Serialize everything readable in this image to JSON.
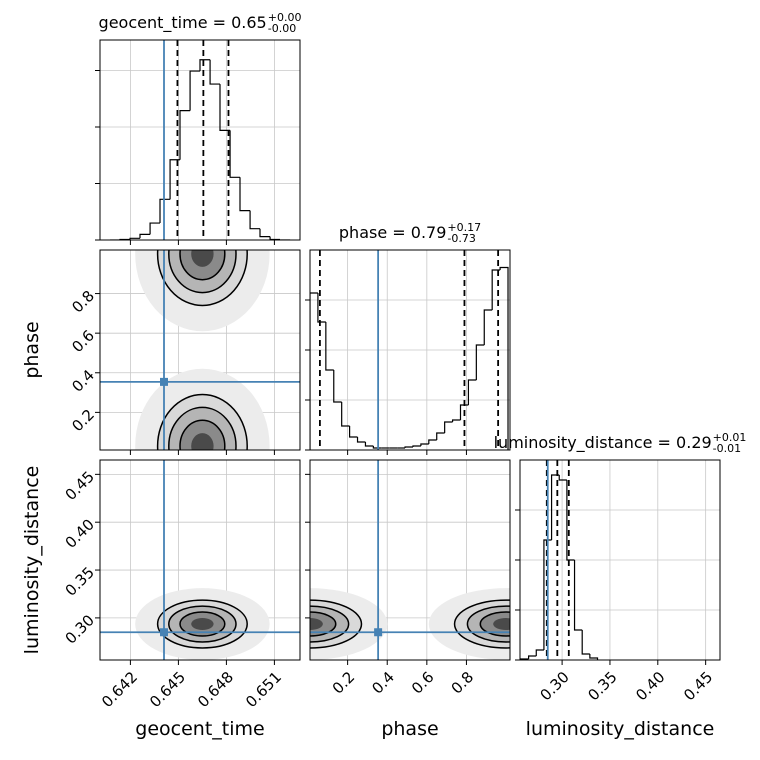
{
  "chart_data": {
    "type": "corner",
    "truth_color": "#4682b4",
    "grid": true,
    "parameters": [
      {
        "label": "geocent_time",
        "title": "geocent_time = 0.65",
        "title_upper": "+0.00",
        "title_lower": "-0.00",
        "lim": [
          0.6401,
          0.6526
        ],
        "ticks": [
          0.642,
          0.645,
          0.648,
          0.651
        ],
        "truth": 0.6441,
        "quantiles": [
          0.64494,
          0.64656,
          0.64813
        ],
        "hist": {
          "bins": [
            0.64073,
            0.64135,
            0.64198,
            0.6426,
            0.64323,
            0.64385,
            0.64448,
            0.6451,
            0.64573,
            0.64635,
            0.64698,
            0.6476,
            0.64823,
            0.64885,
            0.64948,
            0.6501,
            0.65073,
            0.65135,
            0.65198
          ],
          "counts": [
            0.0,
            0.01,
            0.03,
            0.1,
            0.3,
            0.72,
            1.42,
            2.29,
            2.99,
            3.19,
            2.76,
            1.94,
            1.11,
            0.52,
            0.2,
            0.06,
            0.01,
            0.0
          ],
          "ylim": [
            0,
            3.54
          ],
          "yticks": [
            0,
            1,
            2,
            3
          ]
        }
      },
      {
        "label": "phase",
        "title": "phase = 0.79",
        "title_upper": "+0.17",
        "title_lower": "-0.73",
        "lim": [
          0.01,
          1.02
        ],
        "ticks": [
          0.2,
          0.4,
          0.6,
          0.8
        ],
        "truth": 0.354,
        "quantiles": [
          0.06,
          0.79,
          0.96
        ],
        "hist": {
          "bins": [
            0.01,
            0.05,
            0.09,
            0.13,
            0.17,
            0.21,
            0.25,
            0.29,
            0.33,
            0.37,
            0.41,
            0.45,
            0.49,
            0.53,
            0.57,
            0.61,
            0.65,
            0.69,
            0.73,
            0.77,
            0.81,
            0.85,
            0.89,
            0.93,
            0.97,
            1.01
          ],
          "counts": [
            3.14,
            2.56,
            1.6,
            0.96,
            0.48,
            0.26,
            0.16,
            0.08,
            0.04,
            0.04,
            0.04,
            0.04,
            0.06,
            0.08,
            0.12,
            0.2,
            0.34,
            0.56,
            0.6,
            0.9,
            1.4,
            2.1,
            2.8,
            3.6,
            3.65
          ],
          "ylim": [
            0,
            4
          ],
          "yticks": [
            0,
            1,
            2,
            3
          ]
        }
      },
      {
        "label": "luminosity_distance",
        "title": "luminosity_distance = 0.29",
        "title_upper": "+0.01",
        "title_lower": "-0.01",
        "lim": [
          0.256,
          0.465
        ],
        "ticks": [
          {
            "value": 0.3,
            "label": "0.30"
          },
          0.35,
          {
            "value": 0.4,
            "label": "0.40"
          },
          0.45
        ],
        "truth": 0.285,
        "quantiles": [
          0.284,
          0.295,
          0.307
        ],
        "hist": {
          "bins": [
            0.257,
            0.265,
            0.273,
            0.281,
            0.289,
            0.297,
            0.305,
            0.313,
            0.321,
            0.329,
            0.337
          ],
          "counts": [
            0.02,
            0.08,
            0.2,
            2.4,
            3.7,
            3.6,
            2.0,
            0.6,
            0.12,
            0.04
          ],
          "ylim": [
            0,
            4
          ],
          "yticks": [
            0,
            1,
            2,
            3
          ]
        }
      }
    ],
    "pairs": [
      {
        "modes": [
          {
            "x": 0.6465,
            "y": 1.0,
            "x_sd": 0.0014,
            "y_sd": 0.13
          },
          {
            "x": 0.6465,
            "y": 0.03,
            "x_sd": 0.0014,
            "y_sd": 0.13
          }
        ]
      },
      {
        "modes": [
          {
            "x": 0.6465,
            "y": 0.2936,
            "x_sd": 0.0014,
            "y_sd": 0.0125
          }
        ]
      },
      {
        "modes": [
          {
            "x": 0.01,
            "y": 0.2936,
            "x_sd": 0.13,
            "y_sd": 0.0125
          },
          {
            "x": 1.0,
            "y": 0.2936,
            "x_sd": 0.13,
            "y_sd": 0.0125
          }
        ]
      }
    ]
  }
}
